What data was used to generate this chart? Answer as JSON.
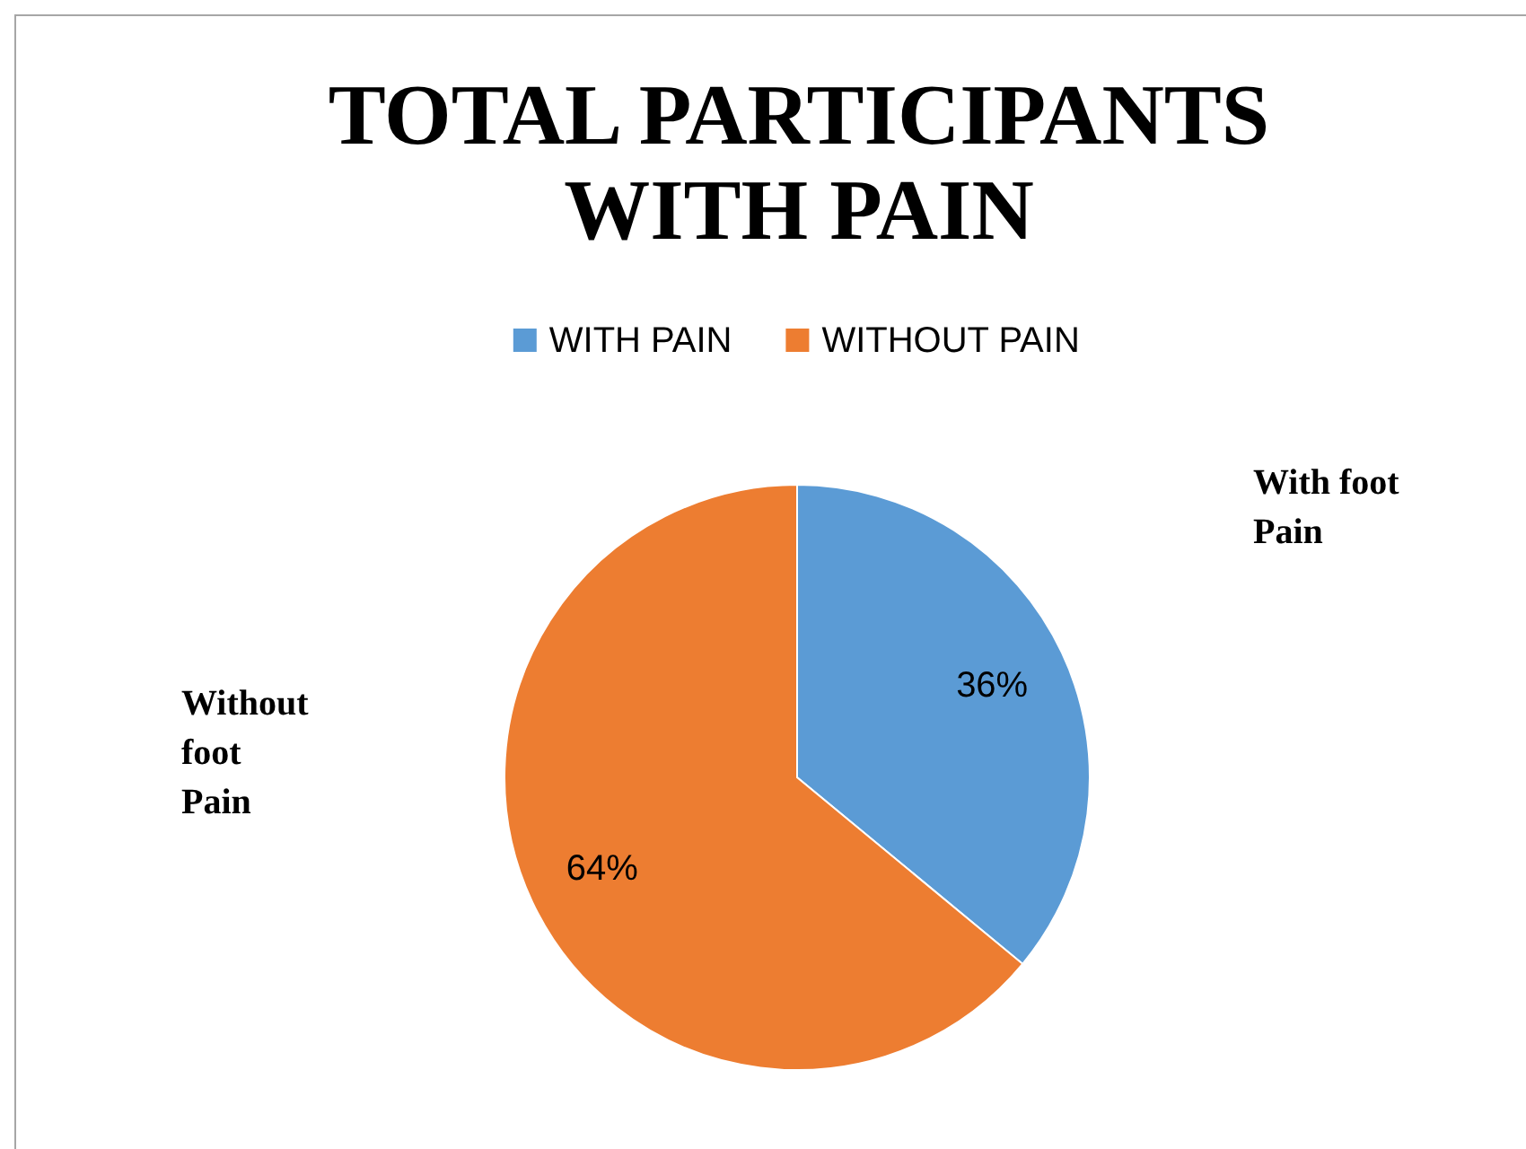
{
  "chart_data": {
    "type": "pie",
    "title": "TOTAL PARTICIPANTS WITH PAIN",
    "categories": [
      "WITH PAIN",
      "WITHOUT PAIN"
    ],
    "values": [
      36,
      64
    ],
    "colors": [
      "#5b9bd5",
      "#ed7d31"
    ],
    "value_labels": [
      "36%",
      "64%"
    ],
    "legend": "top",
    "annotations": [
      "With foot Pain",
      "Without foot Pain"
    ]
  }
}
